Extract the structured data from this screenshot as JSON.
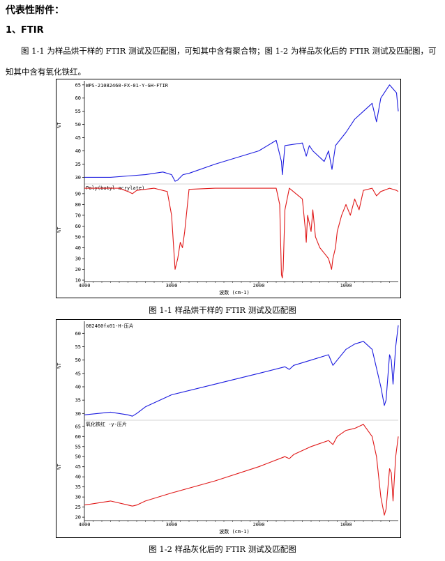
{
  "heading": "代表性附件：",
  "section_title": "1、FTIR",
  "paragraph": "图 1-1 为样品烘干样的 FTIR 测试及匹配图，可知其中含有聚合物；图 1-2 为样品灰化后的 FTIR 测试及匹配图，可知其中含有氧化铁红。",
  "figures": [
    {
      "caption": "图 1-1  样品烘干样的 FTIR 测试及匹配图",
      "x_label": "波数 (cm-1)",
      "x_ticks": [
        "4000",
        "3000",
        "2000",
        "1000"
      ],
      "panels": [
        {
          "label": "WPS-21082460-FX-01-Y-GH-FTIR",
          "y_label": "%T",
          "y_ticks": [
            "65",
            "60",
            "55",
            "50",
            "45",
            "40",
            "35",
            "30"
          ],
          "color": "#1a1adf"
        },
        {
          "label": "Poly(butyl acrylate)",
          "y_label": "%T",
          "y_ticks": [
            "90",
            "80",
            "70",
            "60",
            "50",
            "40",
            "30",
            "20",
            "10"
          ],
          "color": "#e01818"
        }
      ]
    },
    {
      "caption": "图 1-2  样品灰化后的 FTIR 测试及匹配图",
      "x_label": "波数 (cm-1)",
      "x_ticks": [
        "4000",
        "3000",
        "2000",
        "1000"
      ],
      "panels": [
        {
          "label": "082460fx01-H-压片",
          "y_label": "%T",
          "y_ticks": [
            "60",
            "55",
            "50",
            "45",
            "40",
            "35",
            "30"
          ],
          "color": "#1a1adf"
        },
        {
          "label": "氧化铁红 -y-压片",
          "y_label": "%T",
          "y_ticks": [
            "65",
            "60",
            "55",
            "50",
            "45",
            "40",
            "35",
            "30",
            "25",
            "20"
          ],
          "color": "#e01818"
        }
      ]
    }
  ],
  "chart_data": [
    {
      "type": "line",
      "title": "",
      "xlabel": "波数 (cm-1)",
      "xlim": [
        4000,
        400
      ],
      "ylabel": "%T",
      "series": [
        {
          "name": "WPS-21082460-FX-01-Y-GH-FTIR",
          "ylim": [
            28,
            66
          ],
          "x": [
            4000,
            3700,
            3500,
            3300,
            3100,
            3000,
            2960,
            2930,
            2870,
            2800,
            2500,
            2000,
            1800,
            1740,
            1730,
            1700,
            1500,
            1455,
            1420,
            1380,
            1250,
            1200,
            1160,
            1120,
            1000,
            900,
            800,
            700,
            650,
            600,
            500,
            420,
            400
          ],
          "y": [
            30,
            30,
            30.5,
            31,
            32,
            31,
            28.5,
            29,
            31,
            31.5,
            35,
            40,
            44,
            36,
            31,
            42,
            43,
            38,
            42,
            40,
            36,
            40,
            33,
            42,
            47,
            52,
            55,
            58,
            51,
            60,
            65,
            62,
            55
          ]
        },
        {
          "name": "Poly(butyl acrylate)",
          "ylim": [
            10,
            97
          ],
          "x": [
            4000,
            3600,
            3500,
            3450,
            3400,
            3200,
            3050,
            3000,
            2960,
            2930,
            2900,
            2875,
            2850,
            2800,
            2500,
            2000,
            1800,
            1760,
            1740,
            1730,
            1720,
            1700,
            1650,
            1500,
            1470,
            1455,
            1440,
            1400,
            1380,
            1350,
            1300,
            1250,
            1200,
            1165,
            1150,
            1120,
            1100,
            1050,
            1000,
            950,
            900,
            850,
            800,
            700,
            650,
            600,
            500,
            420,
            400
          ],
          "y": [
            95,
            95,
            92,
            90,
            93,
            95,
            92,
            70,
            20,
            30,
            45,
            40,
            55,
            94,
            95,
            95,
            95,
            80,
            15,
            12,
            20,
            75,
            95,
            85,
            60,
            45,
            70,
            55,
            75,
            50,
            40,
            35,
            30,
            20,
            30,
            40,
            55,
            70,
            80,
            70,
            85,
            75,
            93,
            95,
            88,
            92,
            95,
            93,
            92
          ]
        }
      ]
    },
    {
      "type": "line",
      "title": "",
      "xlabel": "波数 (cm-1)",
      "xlim": [
        4000,
        400
      ],
      "ylabel": "%T",
      "series": [
        {
          "name": "082460fx01-H-压片",
          "ylim": [
            28,
            64
          ],
          "x": [
            4000,
            3700,
            3500,
            3450,
            3400,
            3300,
            3000,
            2500,
            2000,
            1700,
            1650,
            1600,
            1400,
            1200,
            1150,
            1100,
            1000,
            900,
            800,
            700,
            600,
            560,
            540,
            500,
            480,
            460,
            430,
            400
          ],
          "y": [
            29.5,
            30.5,
            29.5,
            29,
            30,
            32.5,
            37,
            41,
            45,
            47.5,
            46.5,
            48,
            50,
            52,
            48,
            50,
            54,
            56,
            57,
            54,
            40,
            33,
            35,
            52,
            50,
            41,
            55,
            63
          ]
        },
        {
          "name": "氧化铁红 -y-压片",
          "ylim": [
            19,
            67
          ],
          "x": [
            4000,
            3700,
            3500,
            3450,
            3400,
            3300,
            3000,
            2500,
            2000,
            1700,
            1650,
            1600,
            1400,
            1200,
            1150,
            1100,
            1000,
            900,
            800,
            700,
            650,
            600,
            560,
            540,
            500,
            480,
            460,
            430,
            400
          ],
          "y": [
            26,
            28,
            26,
            25.5,
            26,
            28,
            32,
            38,
            45,
            50,
            49,
            51,
            55,
            58,
            56,
            60,
            63,
            64,
            66,
            60,
            50,
            30,
            21,
            24,
            44,
            42,
            28,
            50,
            60
          ]
        }
      ]
    }
  ]
}
